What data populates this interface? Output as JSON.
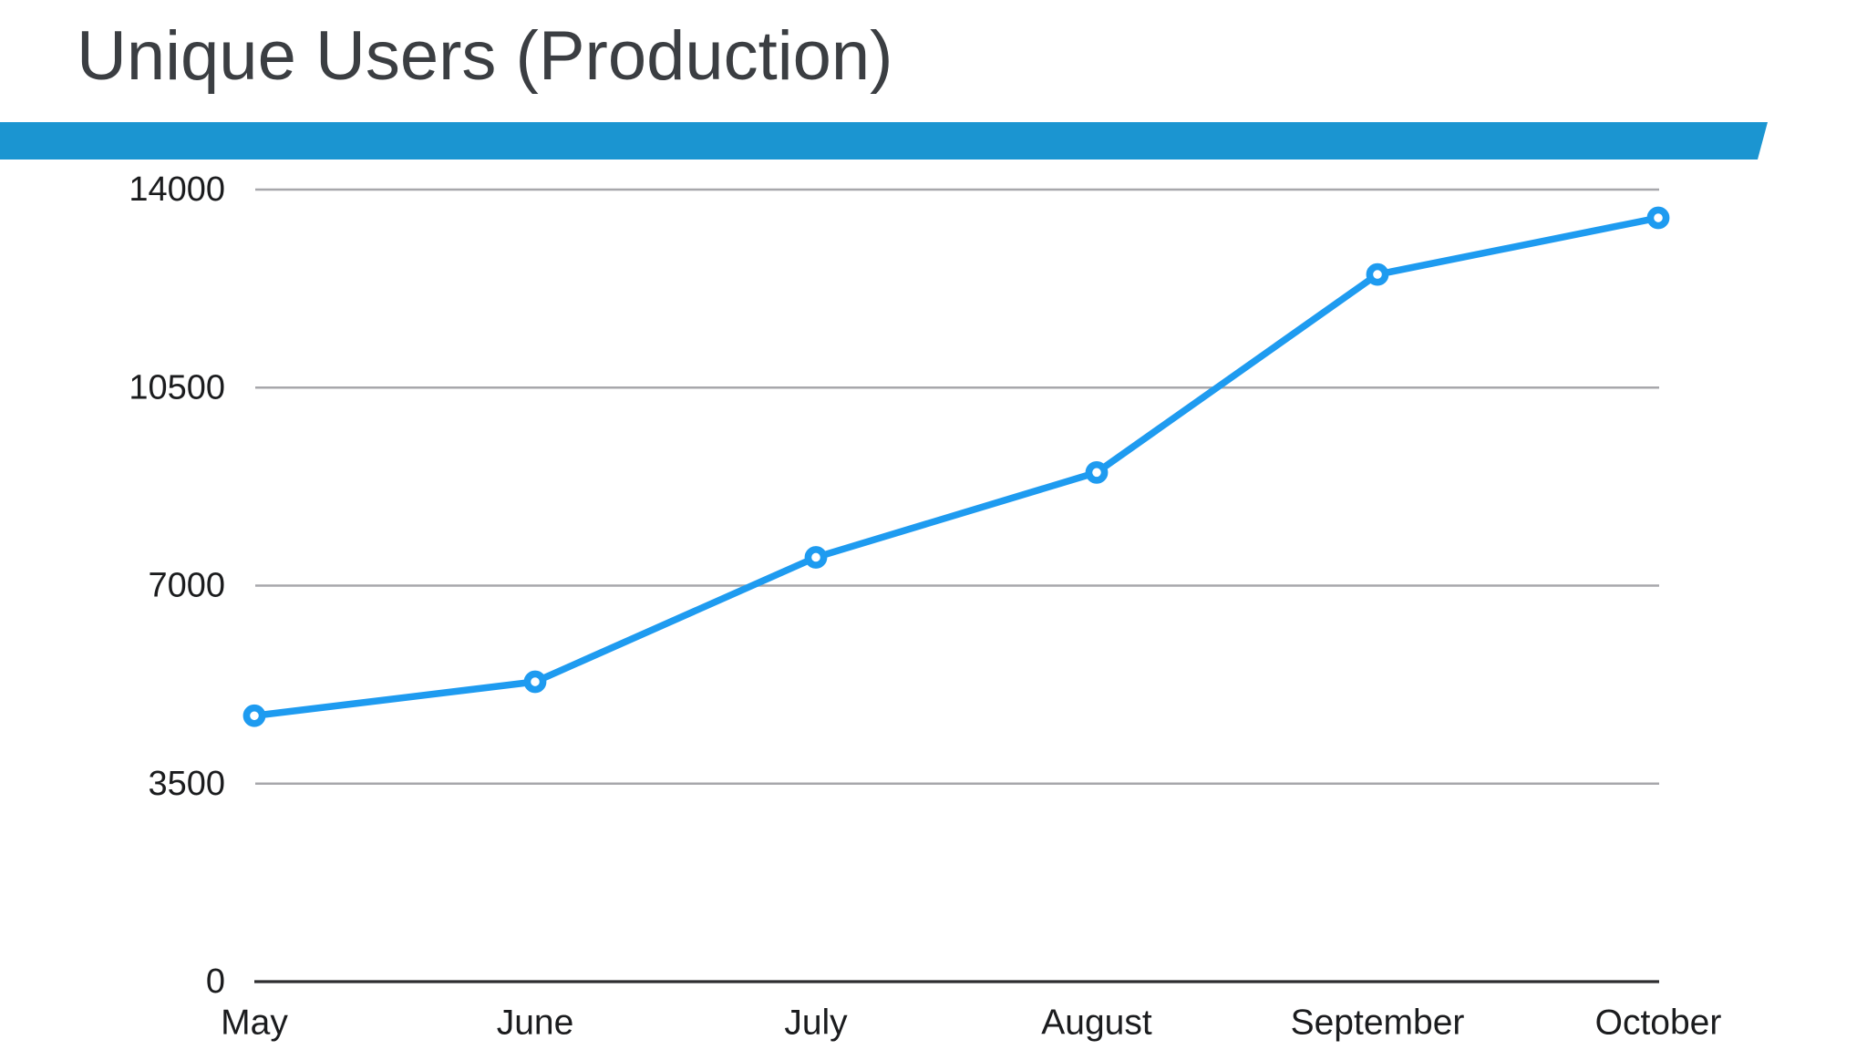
{
  "slide": {
    "title": "Unique Users (Production)"
  },
  "colors": {
    "background": "#ffffff",
    "accent_bar": "#1b95d1",
    "line": "#1e9bf0",
    "marker_fill": "#ffffff",
    "gridline": "#a7a7ab",
    "axis_line": "#2e2e30",
    "tick_text": "#1b1c1e",
    "title_text": "#3b3e42"
  },
  "chart_data": {
    "type": "line",
    "title": "Unique Users (Production)",
    "categories": [
      "May",
      "June",
      "July",
      "August",
      "September",
      "October"
    ],
    "series": [
      {
        "name": "Unique Users (Production)",
        "values": [
          4700,
          5300,
          7500,
          9000,
          12500,
          13500
        ]
      }
    ],
    "xlabel": "",
    "ylabel": "",
    "ylim": [
      0,
      14000
    ],
    "yticks": [
      0,
      3500,
      7000,
      10500,
      14000
    ],
    "ytick_labels": [
      "0",
      "3500",
      "7000",
      "10500",
      "14000"
    ],
    "grid": true,
    "legend": false,
    "marker": "open-circle"
  }
}
